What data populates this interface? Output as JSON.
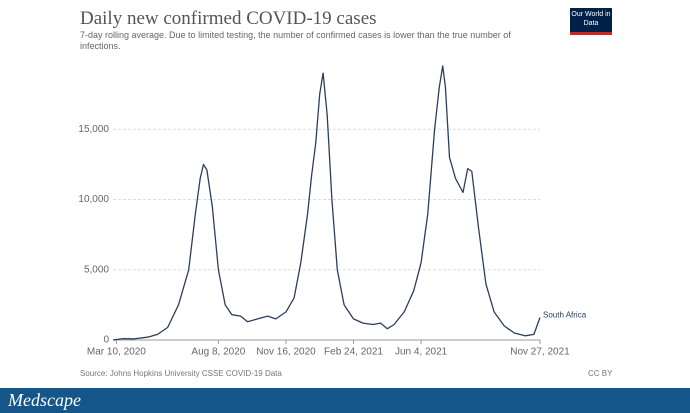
{
  "chart_data": {
    "type": "line",
    "title": "Daily new confirmed COVID-19 cases",
    "subtitle": "7-day rolling average. Due to limited testing, the number of confirmed cases is lower than the true number of infections.",
    "source": "Source: Johns Hopkins University CSSE COVID-19 Data",
    "license": "CC BY",
    "x": [
      "2020-03-05",
      "2020-03-20",
      "2020-04-05",
      "2020-04-25",
      "2020-05-10",
      "2020-05-25",
      "2020-06-10",
      "2020-06-25",
      "2020-07-05",
      "2020-07-12",
      "2020-07-17",
      "2020-07-22",
      "2020-07-30",
      "2020-08-08",
      "2020-08-18",
      "2020-08-28",
      "2020-09-10",
      "2020-09-20",
      "2020-10-05",
      "2020-10-20",
      "2020-11-01",
      "2020-11-16",
      "2020-11-28",
      "2020-12-08",
      "2020-12-18",
      "2020-12-24",
      "2020-12-30",
      "2021-01-05",
      "2021-01-10",
      "2021-01-16",
      "2021-01-23",
      "2021-01-31",
      "2021-02-10",
      "2021-02-24",
      "2021-03-10",
      "2021-03-25",
      "2021-04-05",
      "2021-04-15",
      "2021-04-25",
      "2021-05-10",
      "2021-05-24",
      "2021-06-04",
      "2021-06-14",
      "2021-06-24",
      "2021-07-01",
      "2021-07-06",
      "2021-07-10",
      "2021-07-16",
      "2021-07-25",
      "2021-08-05",
      "2021-08-12",
      "2021-08-18",
      "2021-08-28",
      "2021-09-08",
      "2021-09-20",
      "2021-10-05",
      "2021-10-20",
      "2021-11-05",
      "2021-11-18",
      "2021-11-27"
    ],
    "series": [
      {
        "name": "South Africa",
        "color": "#2c3e5c",
        "values": [
          0,
          100,
          80,
          200,
          400,
          900,
          2500,
          5000,
          9000,
          11500,
          12500,
          12100,
          9500,
          5000,
          2500,
          1800,
          1700,
          1300,
          1500,
          1700,
          1500,
          2000,
          3000,
          5500,
          9000,
          11700,
          14000,
          17500,
          19000,
          16000,
          10000,
          5000,
          2500,
          1500,
          1200,
          1100,
          1200,
          800,
          1100,
          2000,
          3500,
          5500,
          9000,
          15000,
          18000,
          19500,
          18000,
          13000,
          11500,
          10500,
          12200,
          12000,
          8000,
          4000,
          2000,
          1000,
          500,
          300,
          400,
          1600
        ]
      }
    ],
    "xlim": [
      "2020-03-05",
      "2021-11-27"
    ],
    "xticks": [
      {
        "value": "2020-03-10",
        "label": "Mar 10, 2020"
      },
      {
        "value": "2020-08-08",
        "label": "Aug 8, 2020"
      },
      {
        "value": "2020-11-16",
        "label": "Nov 16, 2020"
      },
      {
        "value": "2021-02-24",
        "label": "Feb 24, 2021"
      },
      {
        "value": "2021-06-04",
        "label": "Jun 4, 2021"
      },
      {
        "value": "2021-11-27",
        "label": "Nov 27, 2021"
      }
    ],
    "ylim": [
      0,
      20000
    ],
    "yticks": [
      0,
      {
        "value": 5000,
        "label": "5,000"
      },
      {
        "value": 10000,
        "label": "10,000"
      },
      {
        "value": 15000,
        "label": "15,000"
      }
    ],
    "grid": true
  },
  "branding": {
    "logo": "Our World in Data",
    "footer": "Medscape"
  }
}
